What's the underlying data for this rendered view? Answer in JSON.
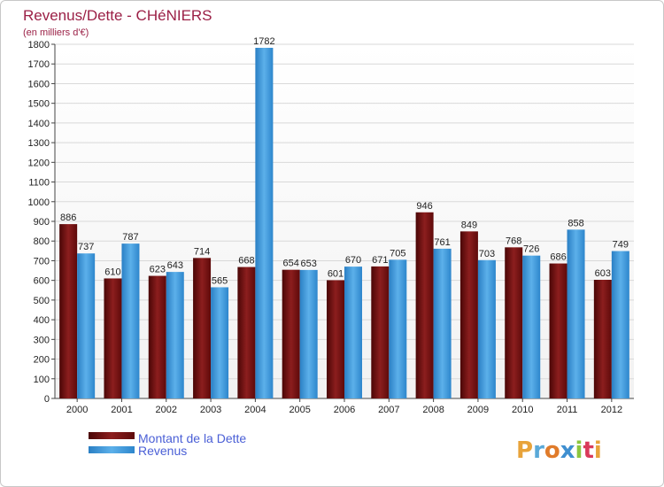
{
  "chart_data": {
    "type": "bar",
    "title": "Revenus/Dette - CHéNIERS",
    "subtitle": "(en milliers d'€)",
    "categories": [
      "2000",
      "2001",
      "2002",
      "2003",
      "2004",
      "2005",
      "2006",
      "2007",
      "2008",
      "2009",
      "2010",
      "2011",
      "2012"
    ],
    "series": [
      {
        "name": "Montant de la Dette",
        "values": [
          886,
          610,
          623,
          714,
          668,
          654,
          601,
          671,
          946,
          849,
          768,
          686,
          603
        ]
      },
      {
        "name": "Revenus",
        "values": [
          737,
          787,
          643,
          565,
          1782,
          653,
          670,
          705,
          761,
          703,
          726,
          858,
          749
        ]
      }
    ],
    "ylim": [
      0,
      1800
    ],
    "yticks": [
      0,
      100,
      200,
      300,
      400,
      500,
      600,
      700,
      800,
      900,
      1000,
      1100,
      1200,
      1300,
      1400,
      1500,
      1600,
      1700,
      1800
    ],
    "grid": true,
    "legend_position": "bottom-left"
  },
  "colors": {
    "dette": "#6b0d0d",
    "dette_light": "#a83a3a",
    "revenus": "#3a95d8",
    "revenus_light": "#6fb8ee",
    "title": "#9b2046",
    "legend_text": "#4a5fd6"
  },
  "logo": {
    "text": "Proxiti"
  }
}
